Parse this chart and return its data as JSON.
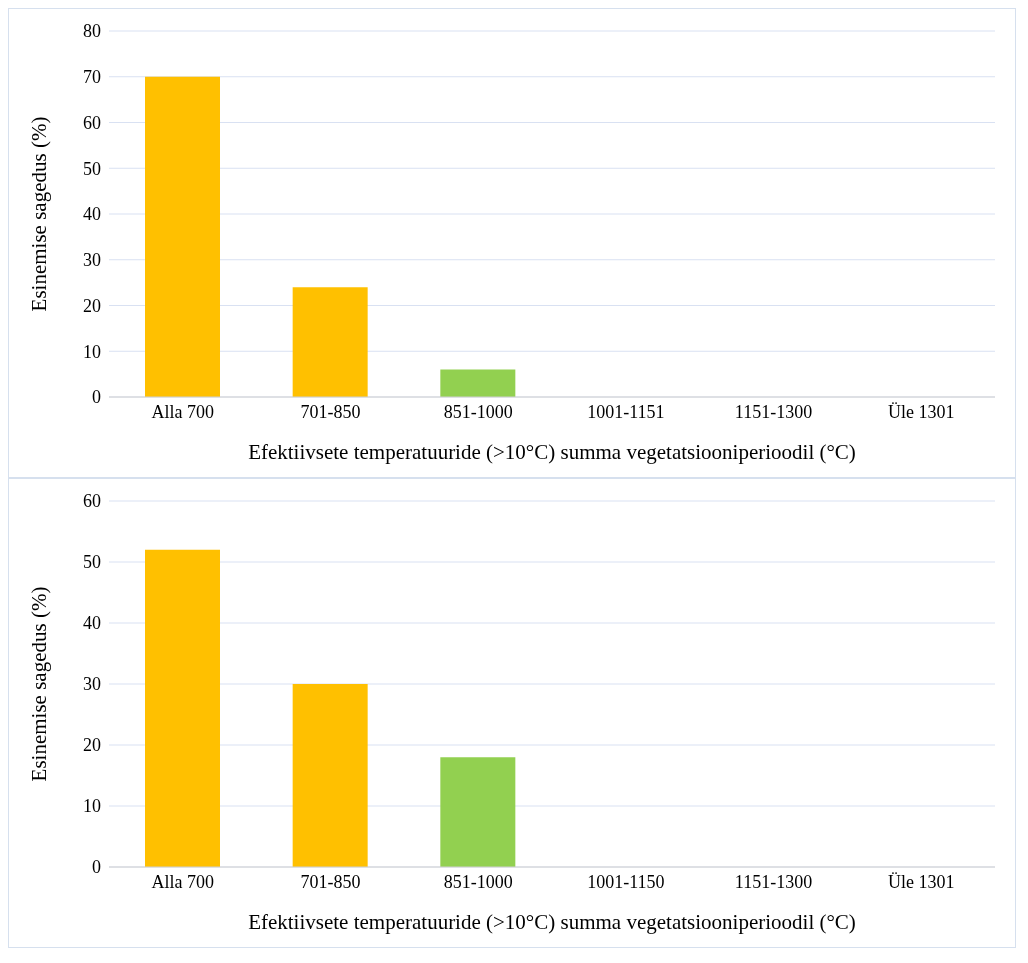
{
  "chart_data": [
    {
      "type": "bar",
      "xlabel": "Efektiivsete temperatuuride (>10°C) summa vegetatsiooniperioodil (°C)",
      "ylabel": "Esinemise sagedus (%)",
      "categories": [
        "Alla 700",
        "701-850",
        "851-1000",
        "1001-1151",
        "1151-1300",
        "Üle 1301"
      ],
      "values": [
        70,
        24,
        6,
        0,
        0,
        0
      ],
      "colors": [
        "#ffc000",
        "#ffc000",
        "#92d050",
        "#ffc000",
        "#ffc000",
        "#ffc000"
      ],
      "ylim": [
        0,
        80
      ],
      "yticks": [
        0,
        10,
        20,
        30,
        40,
        50,
        60,
        70,
        80
      ],
      "grid": "y"
    },
    {
      "type": "bar",
      "xlabel": "Efektiivsete temperatuuride (>10°C) summa vegetatsiooniperioodil (°C)",
      "ylabel": "Esinemise sagedus (%)",
      "categories": [
        "Alla 700",
        "701-850",
        "851-1000",
        "1001-1150",
        "1151-1300",
        "Üle 1301"
      ],
      "values": [
        52,
        30,
        18,
        0,
        0,
        0
      ],
      "colors": [
        "#ffc000",
        "#ffc000",
        "#92d050",
        "#ffc000",
        "#ffc000",
        "#ffc000"
      ],
      "ylim": [
        0,
        60
      ],
      "yticks": [
        0,
        10,
        20,
        30,
        40,
        50,
        60
      ],
      "grid": "y"
    }
  ]
}
